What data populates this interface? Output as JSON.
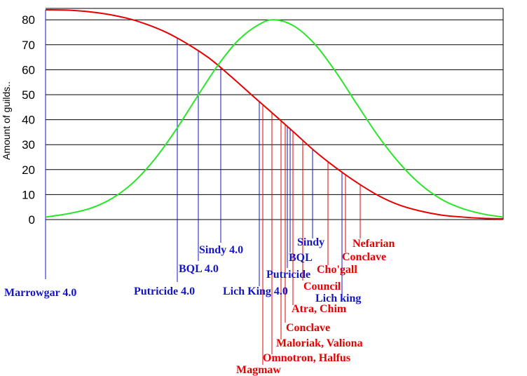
{
  "chart_data": {
    "type": "line",
    "title": "",
    "ylabel": "Amount of guilds..",
    "xlabel": "",
    "ylim": [
      0,
      85
    ],
    "yticks": [
      0,
      10,
      20,
      30,
      40,
      50,
      60,
      70,
      80
    ],
    "grid": true,
    "legend": "none",
    "colors": {
      "blue": "#1414c8",
      "red": "#e60000",
      "green": "#28e628"
    },
    "series": [
      {
        "color": "#e60000",
        "x": [
          65,
          100,
          140,
          180,
          210,
          240,
          270,
          300,
          330,
          360,
          390,
          420,
          450,
          480,
          510,
          540,
          570,
          600,
          630,
          660,
          690,
          718
        ],
        "y": [
          84,
          83.8,
          82.8,
          80.7,
          78.1,
          74.6,
          69.9,
          64.3,
          57.2,
          49.7,
          42.3,
          34.8,
          27.2,
          20.6,
          14.7,
          9.6,
          5.8,
          3.4,
          1.8,
          1.0,
          0.5,
          0.3
        ]
      },
      {
        "color": "#28e628",
        "x": [
          65,
          100,
          130,
          160,
          190,
          220,
          250,
          280,
          310,
          340,
          370,
          392,
          420,
          450,
          480,
          510,
          540,
          570,
          600,
          630,
          660,
          690,
          718
        ],
        "y": [
          1.0,
          2.5,
          4.6,
          8.5,
          14.8,
          23.9,
          35.5,
          48.6,
          61.4,
          71.8,
          78.2,
          80,
          77.4,
          70.0,
          58.8,
          45.9,
          33.3,
          22.6,
          14.1,
          8.1,
          4.4,
          2.2,
          1.0
        ]
      }
    ],
    "markers": [
      {
        "label": "Marrowgar 4.0",
        "x": 65,
        "color": "#1414c8"
      },
      {
        "label": "Putricide 4.0",
        "x": 253,
        "color": "#1414c8"
      },
      {
        "label": "BQL 4.0",
        "x": 283,
        "color": "#1414c8"
      },
      {
        "label": "Sindy 4.0",
        "x": 315,
        "color": "#1414c8"
      },
      {
        "label": "Lich King 4.0",
        "x": 370,
        "color": "#1414c8"
      },
      {
        "label": "Magmaw",
        "x": 375,
        "color": "#e60000"
      },
      {
        "label": "Omnotron, Halfus",
        "x": 388,
        "color": "#e60000"
      },
      {
        "label": "Maloriak, Valiona",
        "x": 401,
        "color": "#e60000"
      },
      {
        "label": "Conclave",
        "x": 407,
        "color": "#e60000"
      },
      {
        "label": "Putricide",
        "x": 410,
        "color": "#1414c8"
      },
      {
        "label": "BQL",
        "x": 414,
        "color": "#1414c8"
      },
      {
        "label": "Atra, Chim",
        "x": 418,
        "color": "#e60000"
      },
      {
        "label": "Council",
        "x": 432,
        "color": "#e60000"
      },
      {
        "label": "Sindy",
        "x": 446,
        "color": "#1414c8"
      },
      {
        "label": "Cho'gall",
        "x": 468,
        "color": "#e60000"
      },
      {
        "label": "Lich king",
        "x": 488,
        "color": "#1414c8"
      },
      {
        "label": "Conclave",
        "x": 493,
        "color": "#e60000"
      },
      {
        "label": "Nefarian",
        "x": 514,
        "color": "#e60000"
      }
    ]
  }
}
